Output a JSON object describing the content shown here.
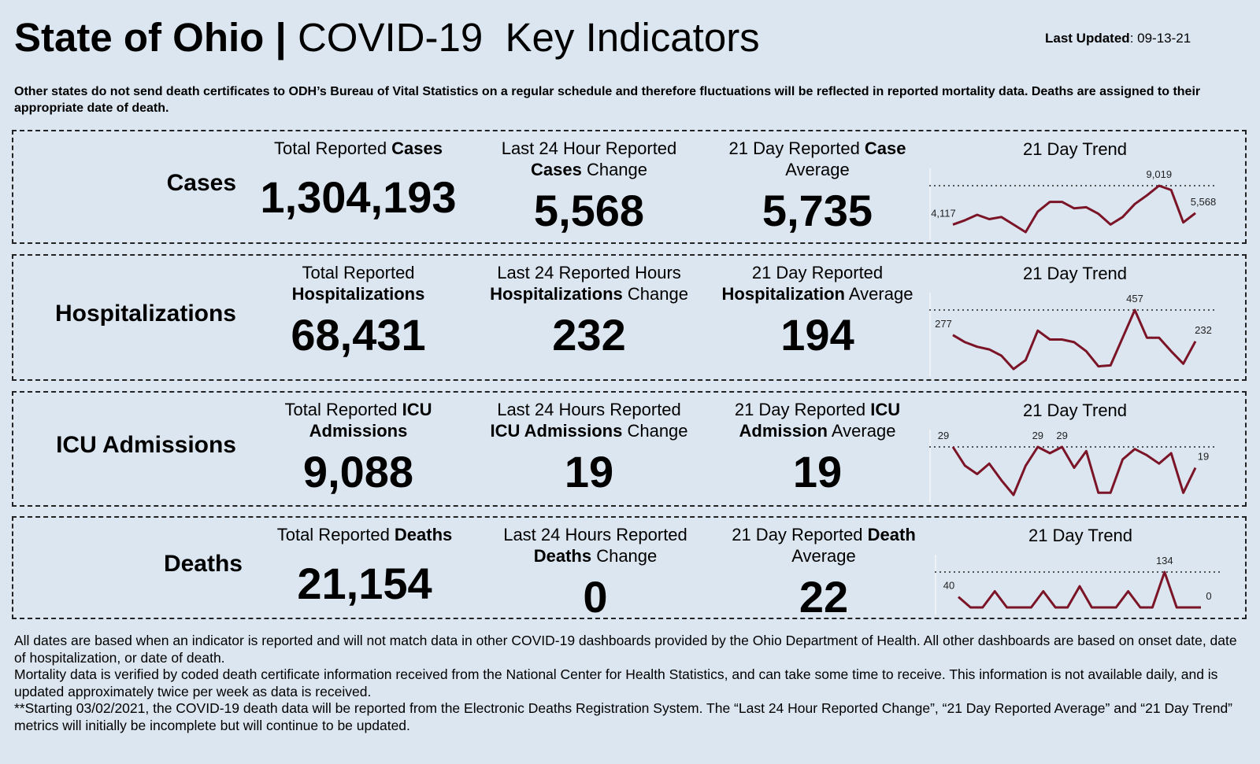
{
  "header": {
    "title_bold": "State of Ohio |",
    "title_regular": "COVID-19  Key Indicators",
    "updated_label": "Last Updated",
    "updated_value": ": 09-13-21"
  },
  "note": "Other states do not send death certificates to ODH’s Bureau of Vital Statistics on a regular schedule and therefore fluctuations will be reflected in reported mortality data. Deaths are assigned to their appropriate date of death.",
  "rows": [
    {
      "label": "Cases",
      "metrics": [
        {
          "lines": [
            [
              {
                "text": "Total Reported ",
                "bold": false
              },
              {
                "text": "Cases",
                "bold": true
              }
            ]
          ],
          "value": "1,304,193"
        },
        {
          "lines": [
            [
              {
                "text": "Last 24 Hour Reported",
                "bold": false
              }
            ],
            [
              {
                "text": "Cases",
                "bold": true
              },
              {
                "text": " Change",
                "bold": false
              }
            ]
          ],
          "value": "5,568"
        },
        {
          "lines": [
            [
              {
                "text": "21 Day Reported ",
                "bold": false
              },
              {
                "text": "Case",
                "bold": true
              }
            ],
            [
              {
                "text": "Average",
                "bold": false
              }
            ]
          ],
          "value": "5,735"
        }
      ],
      "trend": {
        "title": "21 Day Trend",
        "color": "#7a1426",
        "values": [
          4117,
          4662,
          5343,
          4798,
          5070,
          4117,
          3164,
          5751,
          6977,
          6977,
          6160,
          6296,
          5479,
          4117,
          5070,
          6705,
          7794,
          9019,
          8475,
          4389,
          5568
        ],
        "value_labels": [
          "4,117",
          null,
          null,
          null,
          null,
          null,
          null,
          null,
          null,
          null,
          null,
          null,
          null,
          null,
          null,
          null,
          null,
          "9,019",
          null,
          null,
          "5,568"
        ]
      }
    },
    {
      "label": "Hospitalizations",
      "metrics": [
        {
          "lines": [
            [
              {
                "text": "Total Reported",
                "bold": false
              }
            ],
            [
              {
                "text": "Hospitalizations",
                "bold": true
              }
            ]
          ],
          "value": "68,431"
        },
        {
          "lines": [
            [
              {
                "text": "Last 24 Reported Hours",
                "bold": false
              }
            ],
            [
              {
                "text": "Hospitalizations",
                "bold": true
              },
              {
                "text": " Change",
                "bold": false
              }
            ]
          ],
          "value": "232"
        },
        {
          "lines": [
            [
              {
                "text": "21 Day Reported",
                "bold": false
              }
            ],
            [
              {
                "text": "Hospitalization",
                "bold": true
              },
              {
                "text": " Average",
                "bold": false
              }
            ]
          ],
          "value": "194"
        }
      ],
      "trend": {
        "title": "21 Day Trend",
        "color": "#7a1426",
        "values": [
          277,
          226,
          193,
          174,
          129,
          33,
          97,
          309,
          245,
          245,
          226,
          161,
          52,
          59,
          258,
          457,
          258,
          258,
          161,
          71,
          232
        ],
        "value_labels": [
          "277",
          null,
          null,
          null,
          null,
          null,
          null,
          null,
          null,
          null,
          null,
          null,
          null,
          null,
          null,
          "457",
          null,
          null,
          null,
          null,
          "232"
        ]
      }
    },
    {
      "label": "ICU Admissions",
      "metrics": [
        {
          "lines": [
            [
              {
                "text": "Total Reported ",
                "bold": false
              },
              {
                "text": "ICU",
                "bold": true
              }
            ],
            [
              {
                "text": "Admissions",
                "bold": true
              }
            ]
          ],
          "value": "9,088"
        },
        {
          "lines": [
            [
              {
                "text": "Last 24 Hours Reported",
                "bold": false
              }
            ],
            [
              {
                "text": "ICU Admissions",
                "bold": true
              },
              {
                "text": " Change",
                "bold": false
              }
            ]
          ],
          "value": "19"
        },
        {
          "lines": [
            [
              {
                "text": "21 Day Reported ",
                "bold": false
              },
              {
                "text": "ICU",
                "bold": true
              }
            ],
            [
              {
                "text": "Admission",
                "bold": true
              },
              {
                "text": " Average",
                "bold": false
              }
            ]
          ],
          "value": "19"
        }
      ],
      "trend": {
        "title": "21 Day Trend",
        "color": "#7a1426",
        "values": [
          29,
          20,
          16,
          21,
          13,
          6,
          20,
          29,
          26,
          29,
          19,
          27,
          7,
          7,
          23,
          28,
          25,
          21,
          26,
          7,
          19
        ],
        "value_labels": [
          "29",
          null,
          null,
          null,
          null,
          null,
          null,
          "29",
          null,
          "29",
          null,
          null,
          null,
          null,
          null,
          null,
          null,
          null,
          null,
          null,
          "19"
        ]
      }
    },
    {
      "label": "Deaths",
      "metrics": [
        {
          "lines": [
            [
              {
                "text": "Total Reported ",
                "bold": false
              },
              {
                "text": "Deaths",
                "bold": true
              }
            ]
          ],
          "value": "21,154"
        },
        {
          "lines": [
            [
              {
                "text": "Last 24 Hours Reported",
                "bold": false
              }
            ],
            [
              {
                "text": "Deaths",
                "bold": true
              },
              {
                "text": " Change",
                "bold": false
              }
            ]
          ],
          "value": "0"
        },
        {
          "lines": [
            [
              {
                "text": "21 Day Reported ",
                "bold": false
              },
              {
                "text": "Death",
                "bold": true
              }
            ],
            [
              {
                "text": "Average",
                "bold": false
              }
            ]
          ],
          "value": "22"
        }
      ],
      "trend": {
        "title": "21 Day Trend",
        "color": "#7a1426",
        "values": [
          40,
          0,
          0,
          61,
          0,
          0,
          0,
          61,
          0,
          0,
          80,
          0,
          0,
          0,
          61,
          0,
          0,
          134,
          0,
          0,
          0
        ],
        "value_labels": [
          "40",
          null,
          null,
          null,
          null,
          null,
          null,
          null,
          null,
          null,
          null,
          null,
          null,
          null,
          null,
          null,
          null,
          "134",
          null,
          null,
          "0"
        ]
      }
    }
  ],
  "footer": [
    "All dates are based when an indicator is reported and will not match data in other COVID-19 dashboards provided by the Ohio Department of Health. All other dashboards are based on onset date, date of hospitalization, or date of death.",
    "Mortality data is verified by coded death certificate information received from the National Center for Health Statistics, and can take some time to receive. This information is not available daily, and is updated approximately twice per week as data is received.",
    "**Starting 03/02/2021, the COVID-19 death data will be reported from the Electronic Deaths Registration System. The “Last 24 Hour Reported Change”, “21 Day Reported Average” and “21 Day Trend” metrics will initially be incomplete but will continue to be updated."
  ]
}
